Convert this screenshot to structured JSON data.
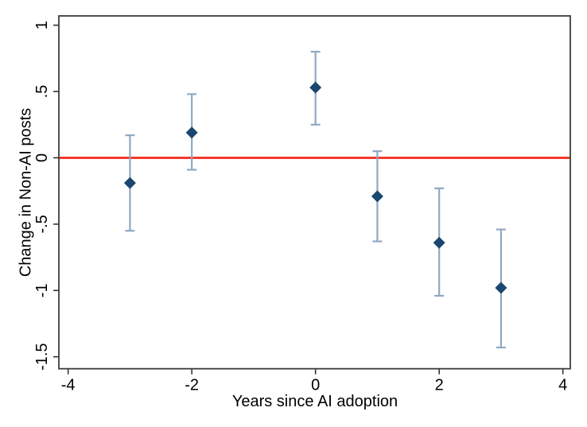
{
  "chart_data": {
    "type": "scatter",
    "subtype": "event-study-errorbar",
    "title": "",
    "xlabel": "Years since AI adoption",
    "ylabel": "Change in Non-AI posts",
    "x": [
      -3,
      -2,
      0,
      1,
      2,
      3
    ],
    "series": [
      {
        "name": "point-estimate",
        "marker": "diamond",
        "values": [
          -0.19,
          0.19,
          0.53,
          -0.29,
          -0.64,
          -0.98
        ]
      }
    ],
    "ci_low": [
      -0.55,
      -0.09,
      0.25,
      -0.63,
      -1.04,
      -1.43
    ],
    "ci_high": [
      0.17,
      0.48,
      0.8,
      0.05,
      -0.23,
      -0.54
    ],
    "reference_line_y": 0,
    "xlim": [
      -4.15,
      4.12
    ],
    "ylim": [
      -1.59,
      1.07
    ],
    "xticks": {
      "values": [
        -4,
        -2,
        0,
        2,
        4
      ],
      "labels": [
        "-4",
        "-2",
        "0",
        "2",
        "4"
      ]
    },
    "yticks": {
      "values": [
        1,
        0.5,
        0,
        -0.5,
        -1,
        -1.5
      ],
      "labels": [
        "1",
        ".5",
        "0",
        "-.5",
        "-1",
        "-1.5"
      ]
    },
    "grid": false,
    "legend": false,
    "colors": {
      "marker": "#1a476f",
      "ci": "#91a8c2",
      "reference_line": "#f5281c",
      "border": "#3d3d3d",
      "tick": "#333333",
      "text": "#000000",
      "background": "#ffffff"
    }
  }
}
